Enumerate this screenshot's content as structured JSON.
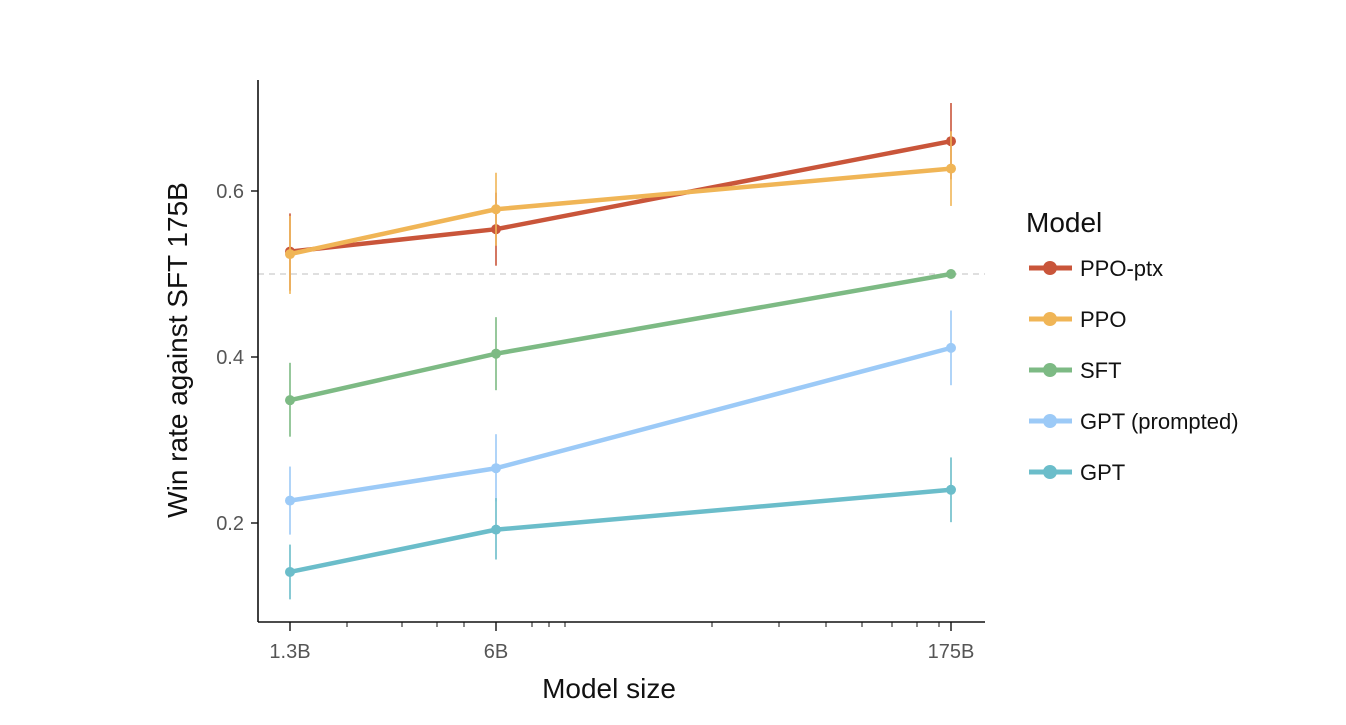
{
  "chart_data": {
    "type": "line",
    "title": "",
    "xlabel": "Model size",
    "ylabel": "Win rate against SFT 175B",
    "x_scale": "log",
    "x_tick_labels": [
      "1.3B",
      "6B",
      "175B"
    ],
    "y_ticks": [
      0.2,
      0.4,
      0.6
    ],
    "y_tick_labels": [
      "0.2",
      "0.4",
      "0.6"
    ],
    "ylim": [
      0.08,
      0.74
    ],
    "reference_line": 0.5,
    "legend_title": "Model",
    "legend_position": "right",
    "grid": false,
    "x": [
      "1.3B",
      "6B",
      "175B"
    ],
    "series": [
      {
        "name": "PPO-ptx",
        "color": "#c9553a",
        "values": [
          0.527,
          0.554,
          0.66
        ],
        "err_low": [
          0.48,
          0.51,
          0.614
        ],
        "err_high": [
          0.573,
          0.598,
          0.706
        ]
      },
      {
        "name": "PPO",
        "color": "#f0b556",
        "values": [
          0.524,
          0.578,
          0.627
        ],
        "err_low": [
          0.476,
          0.534,
          0.582
        ],
        "err_high": [
          0.57,
          0.622,
          0.672
        ]
      },
      {
        "name": "SFT",
        "color": "#7dba84",
        "values": [
          0.348,
          0.404,
          0.5
        ],
        "err_low": [
          0.304,
          0.36,
          0.5
        ],
        "err_high": [
          0.393,
          0.448,
          0.5
        ]
      },
      {
        "name": "GPT (prompted)",
        "color": "#9ccaf7",
        "values": [
          0.227,
          0.266,
          0.411
        ],
        "err_low": [
          0.186,
          0.226,
          0.366
        ],
        "err_high": [
          0.268,
          0.307,
          0.456
        ]
      },
      {
        "name": "GPT",
        "color": "#6bbdca",
        "values": [
          0.141,
          0.192,
          0.24
        ],
        "err_low": [
          0.108,
          0.156,
          0.201
        ],
        "err_high": [
          0.174,
          0.23,
          0.279
        ]
      }
    ]
  }
}
